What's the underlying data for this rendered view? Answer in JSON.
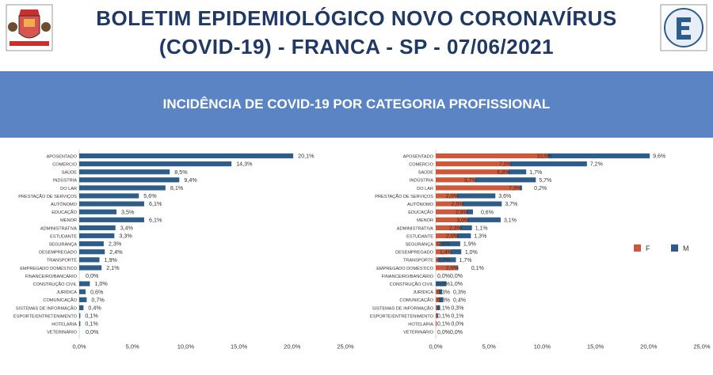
{
  "header": {
    "title_line1": "BOLETIM EPIDEMIOLÓGICO NOVO CORONAVÍRUS",
    "title_line2": "(COVID-19) - FRANCA - SP - 07/06/2021",
    "logo_left": "franca-coat-of-arms",
    "logo_right": "prefeitura-vigilancia-epidemiologica-logo"
  },
  "section_title": "INCIDÊNCIA DE COVID-19 POR CATEGORIA PROFISSIONAL",
  "colors": {
    "band": "#5b84c4",
    "title": "#1f3864",
    "series_total": "#2e5d8a",
    "series_F": "#d0583a",
    "series_M": "#2e5d8a"
  },
  "chart_data": [
    {
      "type": "bar",
      "orientation": "horizontal",
      "categories": [
        "APOSENTADO",
        "COMERCIO",
        "SAÚDE",
        "INDÚSTRIA",
        "DO LAR",
        "PRESTAÇÃO DE SERVIÇOS",
        "AUTÔNOMO",
        "EDUCAÇÃO",
        "MENOR",
        "ADMINISTRATIVA",
        "ESTUDANTE",
        "SEGURANÇA",
        "DESEMPREGADO",
        "TRANSPORTE",
        "EMPREGADO DOMÉSTICO",
        "FINANCEIRO/BANCÁRIO",
        "CONSTRUÇÃO CIVIL",
        "JURÍDICA",
        "COMUNICAÇÃO",
        "SISTEMAS DE INFORMAÇÃO",
        "ESPORTE/ENTRETENIMENTO",
        "HOTELARIA",
        "VETERINÁRIO"
      ],
      "values": [
        20.1,
        14.3,
        8.5,
        9.4,
        8.1,
        5.6,
        6.1,
        3.5,
        6.1,
        3.4,
        3.3,
        2.3,
        2.4,
        1.9,
        2.1,
        0.0,
        1.0,
        0.6,
        0.7,
        0.4,
        0.1,
        0.1,
        0.0
      ],
      "labels": [
        "20,1%",
        "14,3%",
        "8,5%",
        "9,4%",
        "8,1%",
        "5,6%",
        "6,1%",
        "3,5%",
        "6,1%",
        "3,4%",
        "3,3%",
        "2,3%",
        "2,4%",
        "1,9%",
        "2,1%",
        "0,0%",
        "1,0%",
        "0,6%",
        "0,7%",
        "0,4%",
        "0,1%",
        "0,1%",
        "0,0%"
      ],
      "xticks": [
        "0,0%",
        "5,0%",
        "10,0%",
        "15,0%",
        "20,0%",
        "25,0%"
      ],
      "xlim": [
        0,
        25
      ]
    },
    {
      "type": "bar",
      "orientation": "horizontal",
      "stacked": true,
      "categories": [
        "APOSENTADO",
        "COMERCIO",
        "SAÚDE",
        "INDÚSTRIA",
        "DO LAR",
        "PRESTAÇÃO DE SERVIÇOS",
        "AUTÔNOMO",
        "EDUCAÇÃO",
        "MENOR",
        "ADMINISTRATIVA",
        "ESTUDANTE",
        "SEGURANÇA",
        "DESEMPREGADO",
        "TRANSPORTE",
        "EMPREGADO DOMÉSTICO",
        "FINANCEIRO/BANCÁRIO",
        "CONSTRUÇÃO CIVIL",
        "JURÍDICA",
        "COMUNICAÇÃO",
        "SISTEMAS DE INFORMAÇÃO",
        "ESPORTE/ENTRETENIMENTO",
        "HOTELARIA",
        "VETERINÁRIO"
      ],
      "series": [
        {
          "name": "F",
          "values": [
            10.5,
            7.0,
            6.8,
            3.7,
            7.9,
            2.0,
            2.5,
            2.9,
            3.0,
            2.3,
            2.0,
            0.4,
            1.4,
            0.2,
            2.0,
            0.0,
            0.0,
            0.3,
            0.3,
            0.1,
            0.1,
            0.1,
            0.0
          ],
          "labels": [
            "10,5%",
            "7,0%",
            "6,8%",
            "3,7%",
            "7,9%",
            "2,0%",
            "2,5%",
            "2,9%",
            "3,0%",
            "2,3%",
            "2,0%",
            "0,4%",
            "1,4%",
            "0,2%",
            "2,0%",
            "0,0%",
            "0,0%",
            "0,3%",
            "0,3%",
            "0,1%",
            "0,1%",
            "0,1%",
            "0,0%"
          ]
        },
        {
          "name": "M",
          "values": [
            9.6,
            7.2,
            1.7,
            5.7,
            0.2,
            3.6,
            3.7,
            0.6,
            3.1,
            1.1,
            1.3,
            1.9,
            1.0,
            1.7,
            0.1,
            0.0,
            1.0,
            0.3,
            0.4,
            0.3,
            0.1,
            0.0,
            0.0
          ],
          "labels": [
            "9,6%",
            "7,2%",
            "1,7%",
            "5,7%",
            "0,2%",
            "3,6%",
            "3,7%",
            "0,6%",
            "3,1%",
            "1,1%",
            "1,3%",
            "1,9%",
            "1,0%",
            "1,7%",
            "0,1%",
            "0,0%",
            "1,0%",
            "0,3%",
            "0,4%",
            "0,3%",
            "0,1%",
            "0,0%",
            "0,0%"
          ]
        }
      ],
      "legend": [
        "F",
        "M"
      ],
      "legend_position": "right",
      "xticks": [
        "0,0%",
        "5,0%",
        "10,0%",
        "15,0%",
        "20,0%",
        "25,0%"
      ],
      "xlim": [
        0,
        25
      ]
    }
  ]
}
